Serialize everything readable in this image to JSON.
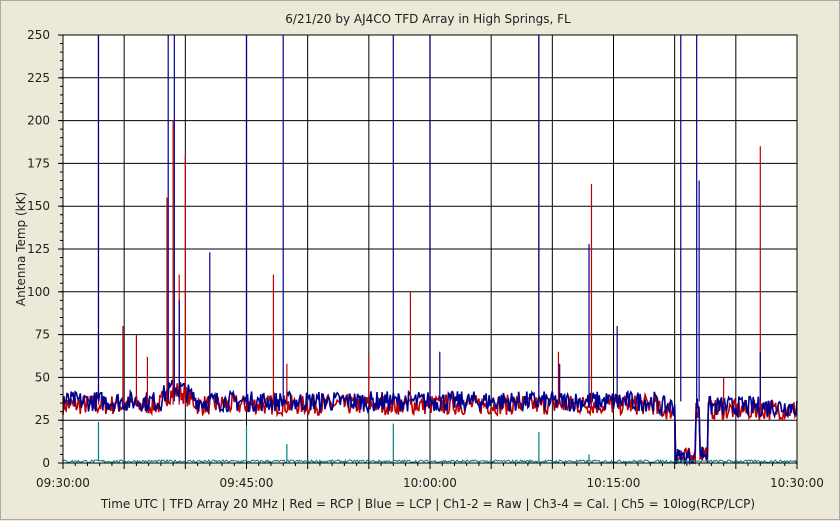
{
  "chart_data": {
    "type": "line",
    "title": "6/21/20  by  AJ4CO TFD Array  in  High Springs, FL",
    "ylabel": "Antenna Temp (kK)",
    "footer": "Time UTC  |  TFD Array 20 MHz  |  Red = RCP  |  Blue = LCP  |  Ch1-2 = Raw  |  Ch3-4 = Cal.  |  Ch5 = 10log(RCP/LCP)",
    "ylim": [
      0,
      250
    ],
    "yticks": [
      "0",
      "25",
      "50",
      "75",
      "100",
      "125",
      "150",
      "175",
      "200",
      "225",
      "250"
    ],
    "xlim_minutes": [
      0,
      60
    ],
    "xticks": [
      {
        "minute": 0,
        "label": "09:30:00"
      },
      {
        "minute": 15,
        "label": "09:45:00"
      },
      {
        "minute": 30,
        "label": "10:00:00"
      },
      {
        "minute": 45,
        "label": "10:15:00"
      },
      {
        "minute": 60,
        "label": "10:30:00"
      }
    ],
    "grid": true,
    "colors": {
      "plot_bg": "#ffffff",
      "grid": "#000000",
      "rcp": "#c00000",
      "lcp": "#000090",
      "ch5": "#008080",
      "frame": "#ece9d8"
    },
    "series": [
      {
        "name": "Red = RCP",
        "baseline_kK": 34,
        "spikes": [
          {
            "t": 2.9,
            "v": 250
          },
          {
            "t": 4.9,
            "v": 80
          },
          {
            "t": 6.0,
            "v": 75
          },
          {
            "t": 6.9,
            "v": 62
          },
          {
            "t": 8.5,
            "v": 155
          },
          {
            "t": 9.0,
            "v": 200
          },
          {
            "t": 9.5,
            "v": 110
          },
          {
            "t": 10.0,
            "v": 180
          },
          {
            "t": 12.0,
            "v": 60
          },
          {
            "t": 15.0,
            "v": 250
          },
          {
            "t": 17.2,
            "v": 110
          },
          {
            "t": 18.3,
            "v": 58
          },
          {
            "t": 25.0,
            "v": 62
          },
          {
            "t": 28.4,
            "v": 100
          },
          {
            "t": 30.0,
            "v": 250
          },
          {
            "t": 38.9,
            "v": 250
          },
          {
            "t": 40.5,
            "v": 65
          },
          {
            "t": 43.2,
            "v": 163
          },
          {
            "t": 54.0,
            "v": 50
          },
          {
            "t": 57.0,
            "v": 185
          }
        ]
      },
      {
        "name": "Blue = LCP",
        "baseline_kK": 36,
        "spikes": [
          {
            "t": 2.9,
            "v": 250
          },
          {
            "t": 8.6,
            "v": 250
          },
          {
            "t": 9.1,
            "v": 250
          },
          {
            "t": 9.5,
            "v": 95
          },
          {
            "t": 12.0,
            "v": 123
          },
          {
            "t": 15.0,
            "v": 250
          },
          {
            "t": 18.0,
            "v": 250
          },
          {
            "t": 27.0,
            "v": 250
          },
          {
            "t": 30.0,
            "v": 250
          },
          {
            "t": 30.8,
            "v": 65
          },
          {
            "t": 38.9,
            "v": 250
          },
          {
            "t": 40.6,
            "v": 58
          },
          {
            "t": 43.0,
            "v": 128
          },
          {
            "t": 45.3,
            "v": 80
          },
          {
            "t": 50.5,
            "v": 250
          },
          {
            "t": 51.8,
            "v": 250
          },
          {
            "t": 52.0,
            "v": 165
          },
          {
            "t": 57.0,
            "v": 65
          }
        ]
      },
      {
        "name": "Ch5 = 10log(RCP/LCP)",
        "baseline_kK": 1,
        "spikes": [
          {
            "t": 2.9,
            "v": 24
          },
          {
            "t": 15.0,
            "v": 22
          },
          {
            "t": 18.3,
            "v": 11
          },
          {
            "t": 27.0,
            "v": 23
          },
          {
            "t": 38.9,
            "v": 18
          },
          {
            "t": 43.0,
            "v": 5
          }
        ]
      }
    ]
  }
}
